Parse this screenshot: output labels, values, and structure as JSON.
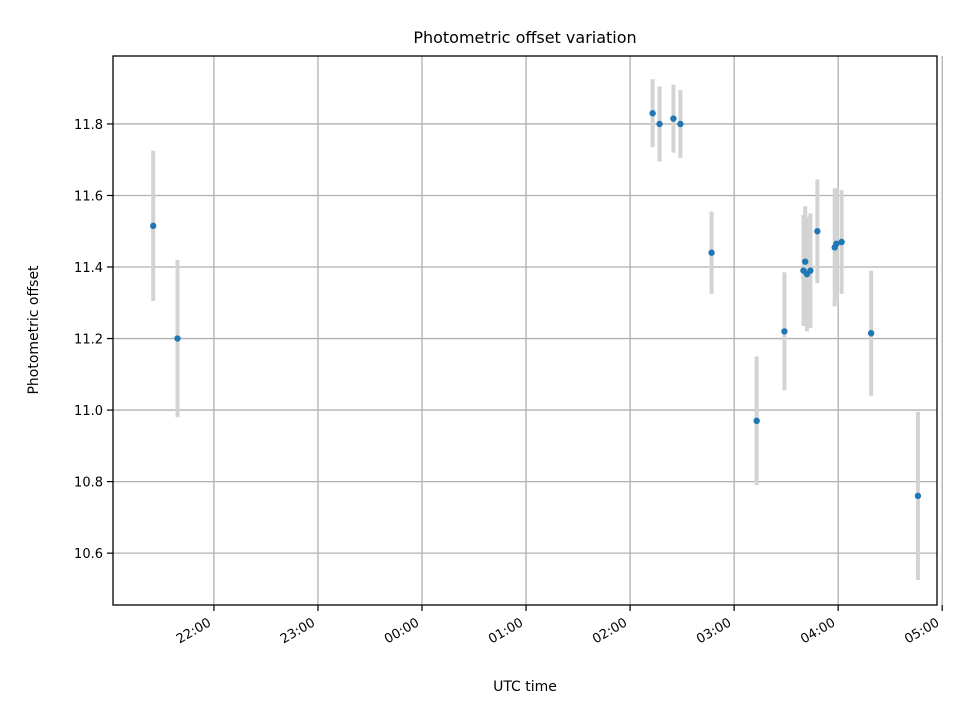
{
  "chart_data": {
    "type": "scatter",
    "title": "Photometric offset variation",
    "xlabel": "UTC time",
    "ylabel": "Photometric offset",
    "x_axis_kind": "time",
    "x_range_hours": [
      21.03,
      28.95
    ],
    "x_tick_hours": [
      22,
      23,
      24,
      25,
      26,
      27,
      28,
      29
    ],
    "x_tick_labels": [
      "22:00",
      "23:00",
      "00:00",
      "01:00",
      "02:00",
      "03:00",
      "04:00",
      "05:00"
    ],
    "ylim": [
      10.455,
      11.99
    ],
    "y_ticks": [
      10.6,
      10.8,
      11.0,
      11.2,
      11.4,
      11.6,
      11.8
    ],
    "y_tick_labels": [
      "10.6",
      "10.8",
      "11.0",
      "11.2",
      "11.4",
      "11.6",
      "11.8"
    ],
    "grid": true,
    "marker_color": "#1f77b4",
    "errorbar_color": "#d3d3d3",
    "points": [
      {
        "time": "21:25",
        "y": 11.515,
        "err": 0.21
      },
      {
        "time": "21:39",
        "y": 11.2,
        "err": 0.22
      },
      {
        "time": "02:13",
        "y": 11.83,
        "err": 0.095
      },
      {
        "time": "02:17",
        "y": 11.8,
        "err": 0.105
      },
      {
        "time": "02:25",
        "y": 11.815,
        "err": 0.095
      },
      {
        "time": "02:29",
        "y": 11.8,
        "err": 0.095
      },
      {
        "time": "02:47",
        "y": 11.44,
        "err": 0.115
      },
      {
        "time": "03:13",
        "y": 10.97,
        "err": 0.18
      },
      {
        "time": "03:29",
        "y": 11.22,
        "err": 0.165
      },
      {
        "time": "03:40",
        "y": 11.39,
        "err": 0.155
      },
      {
        "time": "03:41",
        "y": 11.415,
        "err": 0.155
      },
      {
        "time": "03:42",
        "y": 11.38,
        "err": 0.16
      },
      {
        "time": "03:44",
        "y": 11.39,
        "err": 0.16
      },
      {
        "time": "03:48",
        "y": 11.5,
        "err": 0.145
      },
      {
        "time": "03:58",
        "y": 11.455,
        "err": 0.165
      },
      {
        "time": "03:59",
        "y": 11.465,
        "err": 0.155
      },
      {
        "time": "04:02",
        "y": 11.47,
        "err": 0.145
      },
      {
        "time": "04:19",
        "y": 11.215,
        "err": 0.175
      },
      {
        "time": "04:46",
        "y": 10.76,
        "err": 0.235
      }
    ]
  }
}
